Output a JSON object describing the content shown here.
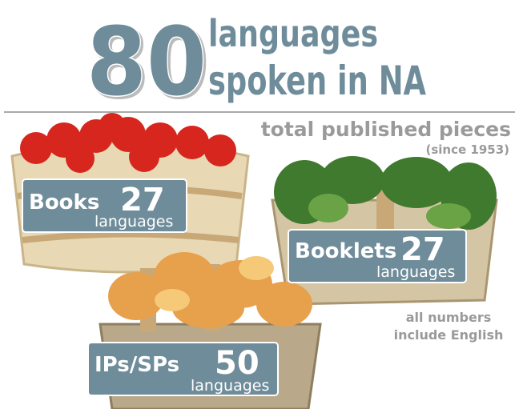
{
  "header": {
    "number": "80",
    "line1": "languages",
    "line2": "spoken in NA"
  },
  "subtitle": "total published pieces",
  "since": "(since 1953)",
  "cards": [
    {
      "label": "Books",
      "count": "27",
      "unit": "languages"
    },
    {
      "label": "Booklets",
      "count": "27",
      "unit": "languages"
    },
    {
      "label": "IPs/SPs",
      "count": "50",
      "unit": "languages"
    }
  ],
  "note": [
    "all numbers",
    "include English"
  ]
}
